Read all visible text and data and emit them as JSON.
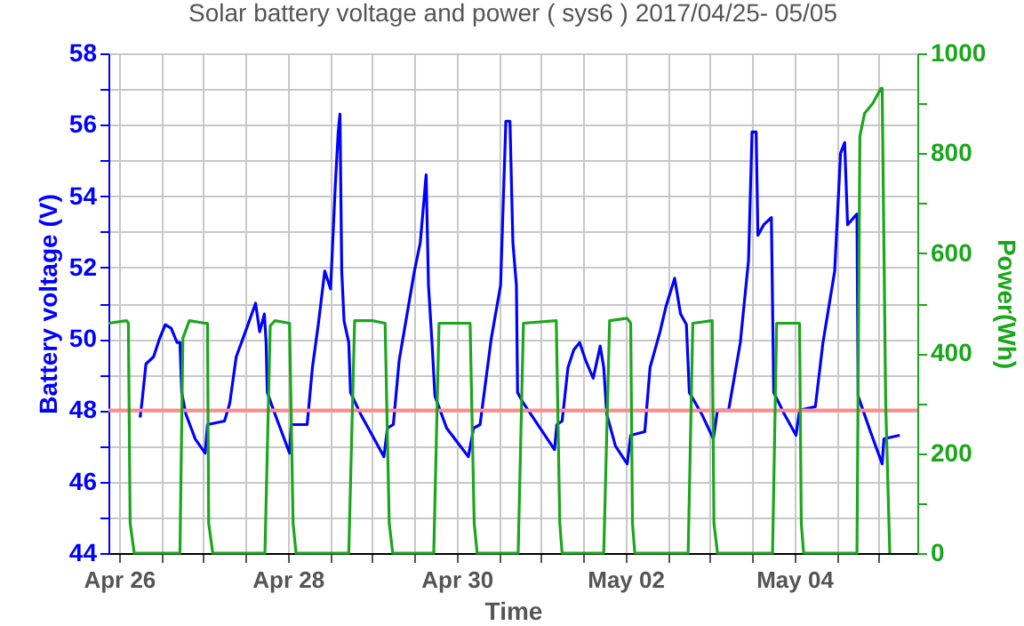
{
  "chart_data": {
    "type": "line",
    "title": "Solar battery voltage and power ( sys6 )  2017/04/25- 05/05",
    "xlabel": "Time",
    "ylabel": "Battery voltage (V)",
    "y2label": "Power(Wh)",
    "xlim": [
      "2017-04-25T21:00",
      "2017-05-05T11:00"
    ],
    "xticks": [
      {
        "value": "2017-04-26T00:00",
        "label": "Apr 26"
      },
      {
        "value": "2017-04-26T12:00",
        "label": null
      },
      {
        "value": "2017-04-27T00:00",
        "label": null
      },
      {
        "value": "2017-04-27T12:00",
        "label": null
      },
      {
        "value": "2017-04-28T00:00",
        "label": "Apr 28"
      },
      {
        "value": "2017-04-28T12:00",
        "label": null
      },
      {
        "value": "2017-04-29T00:00",
        "label": null
      },
      {
        "value": "2017-04-29T12:00",
        "label": null
      },
      {
        "value": "2017-04-30T00:00",
        "label": "Apr 30"
      },
      {
        "value": "2017-04-30T12:00",
        "label": null
      },
      {
        "value": "2017-05-01T00:00",
        "label": null
      },
      {
        "value": "2017-05-01T12:00",
        "label": null
      },
      {
        "value": "2017-05-02T00:00",
        "label": "May 02"
      },
      {
        "value": "2017-05-02T12:00",
        "label": null
      },
      {
        "value": "2017-05-03T00:00",
        "label": null
      },
      {
        "value": "2017-05-03T12:00",
        "label": null
      },
      {
        "value": "2017-05-04T00:00",
        "label": "May 04"
      },
      {
        "value": "2017-05-04T12:00",
        "label": null
      },
      {
        "value": "2017-05-05T00:00",
        "label": null
      }
    ],
    "ylim": [
      44,
      58
    ],
    "yticks": [
      44,
      {
        "value": 45,
        "label": null
      },
      46,
      {
        "value": 47,
        "label": null
      },
      48,
      {
        "value": 49,
        "label": null
      },
      50,
      {
        "value": 51,
        "label": null
      },
      52,
      {
        "value": 53,
        "label": null
      },
      54,
      {
        "value": 55,
        "label": null
      },
      56,
      {
        "value": 57,
        "label": null
      },
      58
    ],
    "y2lim": [
      0,
      1000
    ],
    "y2ticks": [
      0,
      {
        "value": 100,
        "label": null
      },
      200,
      {
        "value": 300,
        "label": null
      },
      400,
      {
        "value": 500,
        "label": null
      },
      600,
      {
        "value": 700,
        "label": null
      },
      800,
      {
        "value": 900,
        "label": null
      },
      1000
    ],
    "grid": true,
    "ref_lines": [
      {
        "axis": "y",
        "value": 48,
        "color": "#ff8c8c"
      }
    ],
    "series": [
      {
        "color": "#0000ff",
        "x": [
          "2017-04-26T06:00",
          "2017-04-26T06:30",
          "2017-04-26T07:40",
          "2017-04-26T09:50",
          "2017-04-26T11:30",
          "2017-04-26T13:10",
          "2017-04-26T14:50",
          "2017-04-26T16:30",
          "2017-04-26T17:20",
          "2017-04-26T17:50",
          "2017-04-26T19:00",
          "2017-04-26T21:40",
          "2017-04-27T00:30",
          "2017-04-27T01:10",
          "2017-04-27T06:00",
          "2017-04-27T07:30",
          "2017-04-27T09:20",
          "2017-04-27T12:40",
          "2017-04-27T14:50",
          "2017-04-27T16:00",
          "2017-04-27T17:20",
          "2017-04-27T17:50",
          "2017-04-27T18:10",
          "2017-04-27T20:20",
          "2017-04-28T00:30",
          "2017-04-28T01:00",
          "2017-04-28T05:30",
          "2017-04-28T07:00",
          "2017-04-28T08:40",
          "2017-04-28T10:30",
          "2017-04-28T12:10",
          "2017-04-28T13:30",
          "2017-04-28T14:20",
          "2017-04-28T14:50",
          "2017-04-28T15:20",
          "2017-04-28T16:00",
          "2017-04-28T17:20",
          "2017-04-28T17:50",
          "2017-04-28T20:40",
          "2017-04-29T00:00",
          "2017-04-29T03:20",
          "2017-04-29T04:20",
          "2017-04-29T06:00",
          "2017-04-29T07:40",
          "2017-04-29T12:00",
          "2017-04-29T13:40",
          "2017-04-29T15:20",
          "2017-04-29T16:00",
          "2017-04-29T17:00",
          "2017-04-29T17:50",
          "2017-04-29T21:10",
          "2017-04-30T03:20",
          "2017-04-30T04:50",
          "2017-04-30T06:40",
          "2017-04-30T09:50",
          "2017-04-30T12:30",
          "2017-04-30T14:00",
          "2017-04-30T15:10",
          "2017-04-30T16:00",
          "2017-04-30T17:00",
          "2017-04-30T17:20",
          "2017-04-30T19:00",
          "2017-05-01T03:50",
          "2017-05-01T04:30",
          "2017-05-01T06:00",
          "2017-05-01T07:40",
          "2017-05-01T09:20",
          "2017-05-01T11:00",
          "2017-05-01T12:40",
          "2017-05-01T14:50",
          "2017-05-01T16:50",
          "2017-05-01T17:50",
          "2017-05-01T18:40",
          "2017-05-01T21:10",
          "2017-05-02T00:30",
          "2017-05-02T01:30",
          "2017-05-02T05:30",
          "2017-05-02T07:00",
          "2017-05-02T09:50",
          "2017-05-02T11:30",
          "2017-05-02T14:00",
          "2017-05-02T15:40",
          "2017-05-02T17:20",
          "2017-05-02T18:10",
          "2017-05-02T21:40",
          "2017-05-03T01:00",
          "2017-05-03T02:10",
          "2017-05-03T05:20",
          "2017-05-03T08:40",
          "2017-05-03T11:00",
          "2017-05-03T12:00",
          "2017-05-03T13:10",
          "2017-05-03T13:40",
          "2017-05-03T15:20",
          "2017-05-03T17:30",
          "2017-05-03T18:10",
          "2017-05-03T21:10",
          "2017-05-04T00:30",
          "2017-05-04T01:30",
          "2017-05-04T06:00",
          "2017-05-04T08:10",
          "2017-05-04T11:30",
          "2017-05-04T13:10",
          "2017-05-04T14:20",
          "2017-05-04T15:10",
          "2017-05-04T17:50",
          "2017-05-04T18:10",
          "2017-05-04T21:40",
          "2017-05-05T01:00",
          "2017-05-05T01:30",
          "2017-05-05T06:00"
        ],
        "values": [
          47.8,
          48.2,
          49.3,
          49.5,
          50.0,
          50.4,
          50.3,
          49.9,
          49.9,
          48.5,
          47.9,
          47.2,
          46.8,
          47.6,
          47.7,
          48.2,
          49.5,
          50.4,
          51.0,
          50.2,
          50.7,
          49.9,
          48.5,
          47.9,
          46.8,
          47.6,
          47.6,
          49.2,
          50.4,
          51.9,
          51.4,
          54.3,
          55.8,
          56.3,
          51.9,
          50.5,
          49.9,
          48.5,
          47.9,
          47.3,
          46.7,
          47.5,
          47.6,
          49.4,
          51.9,
          52.7,
          54.6,
          51.5,
          49.9,
          48.4,
          47.5,
          46.7,
          47.5,
          47.6,
          50.0,
          51.5,
          56.1,
          56.1,
          52.7,
          51.5,
          48.5,
          48.2,
          46.9,
          47.6,
          47.7,
          49.2,
          49.7,
          49.9,
          49.4,
          48.9,
          49.8,
          49.2,
          47.9,
          47.0,
          46.5,
          47.3,
          47.4,
          49.2,
          50.2,
          50.9,
          51.7,
          50.7,
          50.4,
          48.5,
          47.9,
          47.2,
          48.0,
          48.0,
          49.9,
          52.2,
          55.8,
          55.8,
          52.9,
          53.2,
          53.4,
          48.5,
          47.9,
          47.3,
          48.0,
          48.1,
          49.9,
          51.9,
          55.2,
          55.5,
          53.2,
          53.5,
          48.4,
          47.4,
          46.5,
          47.2,
          47.3
        ]
      },
      {
        "color": "#1ca61c",
        "axis": "y2",
        "x": [
          "2017-04-25T21:00",
          "2017-04-26T02:10",
          "2017-04-26T02:40",
          "2017-04-26T03:10",
          "2017-04-26T04:20",
          "2017-04-26T17:20",
          "2017-04-26T18:10",
          "2017-04-26T20:00",
          "2017-04-27T00:30",
          "2017-04-27T01:10",
          "2017-04-27T01:30",
          "2017-04-27T02:40",
          "2017-04-27T17:30",
          "2017-04-27T19:00",
          "2017-04-27T20:20",
          "2017-04-28T00:30",
          "2017-04-28T01:30",
          "2017-04-28T02:20",
          "2017-04-28T17:20",
          "2017-04-28T19:00",
          "2017-04-29T00:00",
          "2017-04-29T03:40",
          "2017-04-29T04:50",
          "2017-04-29T05:50",
          "2017-04-29T17:30",
          "2017-04-29T19:00",
          "2017-04-30T03:50",
          "2017-04-30T05:00",
          "2017-04-30T05:50",
          "2017-04-30T17:30",
          "2017-04-30T19:00",
          "2017-05-01T04:20",
          "2017-05-01T05:20",
          "2017-05-01T06:00",
          "2017-05-01T17:50",
          "2017-05-01T19:30",
          "2017-05-02T00:30",
          "2017-05-02T01:30",
          "2017-05-02T02:00",
          "2017-05-02T02:40",
          "2017-05-02T17:50",
          "2017-05-02T19:10",
          "2017-05-03T00:40",
          "2017-05-03T01:10",
          "2017-05-03T02:10",
          "2017-05-03T17:50",
          "2017-05-03T19:00",
          "2017-05-04T01:30",
          "2017-05-04T02:00",
          "2017-05-04T02:40",
          "2017-05-04T17:50",
          "2017-05-04T18:40",
          "2017-05-04T20:00",
          "2017-05-04T22:20",
          "2017-05-05T00:40",
          "2017-05-05T01:00",
          "2017-05-05T02:00",
          "2017-05-05T03:10"
        ],
        "values": [
          460,
          465,
          460,
          60,
          0,
          0,
          430,
          465,
          460,
          460,
          60,
          0,
          0,
          455,
          465,
          460,
          60,
          0,
          0,
          465,
          465,
          460,
          60,
          0,
          0,
          460,
          460,
          60,
          0,
          0,
          460,
          465,
          60,
          0,
          0,
          465,
          470,
          460,
          60,
          0,
          0,
          460,
          465,
          60,
          0,
          0,
          460,
          460,
          60,
          0,
          0,
          834,
          880,
          900,
          930,
          930,
          300,
          0
        ]
      }
    ]
  }
}
